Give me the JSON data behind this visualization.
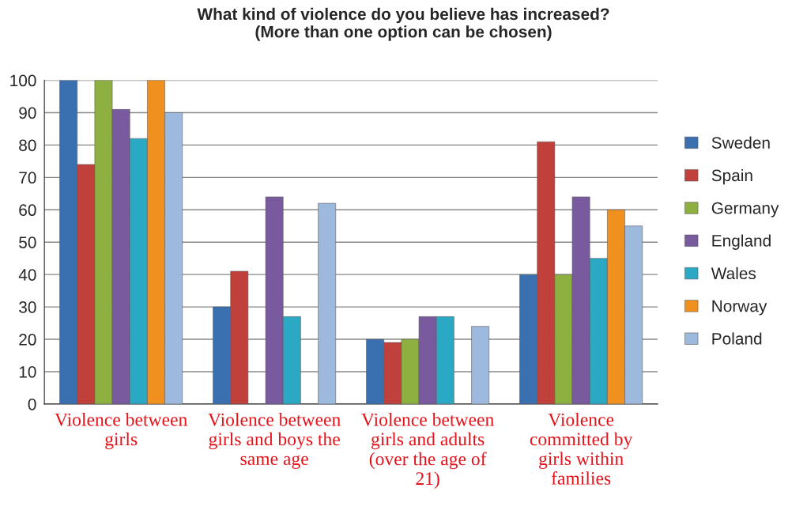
{
  "chart_data": {
    "type": "bar",
    "title": "What kind of violence do you believe has increased?\n(More than one option can be chosen)",
    "categories": [
      "Violence between\ngirls",
      "Violence between\ngirls and boys the\nsame age",
      "Violence between\ngirls and adults\n(over the age of\n21)",
      "Violence\ncommitted by\ngirls within\nfamilies"
    ],
    "series": [
      {
        "name": "Sweden",
        "color": "#3a6fb0",
        "values": [
          100,
          30,
          20,
          40
        ]
      },
      {
        "name": "Spain",
        "color": "#c0403c",
        "values": [
          74,
          41,
          19,
          81
        ]
      },
      {
        "name": "Germany",
        "color": "#8db040",
        "values": [
          100,
          null,
          20,
          40
        ]
      },
      {
        "name": "England",
        "color": "#7a5a9e",
        "values": [
          91,
          64,
          27,
          64
        ]
      },
      {
        "name": "Wales",
        "color": "#2ba8c4",
        "values": [
          82,
          27,
          27,
          45
        ]
      },
      {
        "name": "Norway",
        "color": "#f0901e",
        "values": [
          100,
          null,
          null,
          60
        ]
      },
      {
        "name": "Poland",
        "color": "#9db9de",
        "values": [
          90,
          62,
          24,
          55
        ]
      }
    ],
    "ylim": [
      0,
      100
    ],
    "yticks": [
      0,
      10,
      20,
      30,
      40,
      50,
      60,
      70,
      80,
      90,
      100
    ],
    "grid": "y",
    "legend": "right"
  }
}
